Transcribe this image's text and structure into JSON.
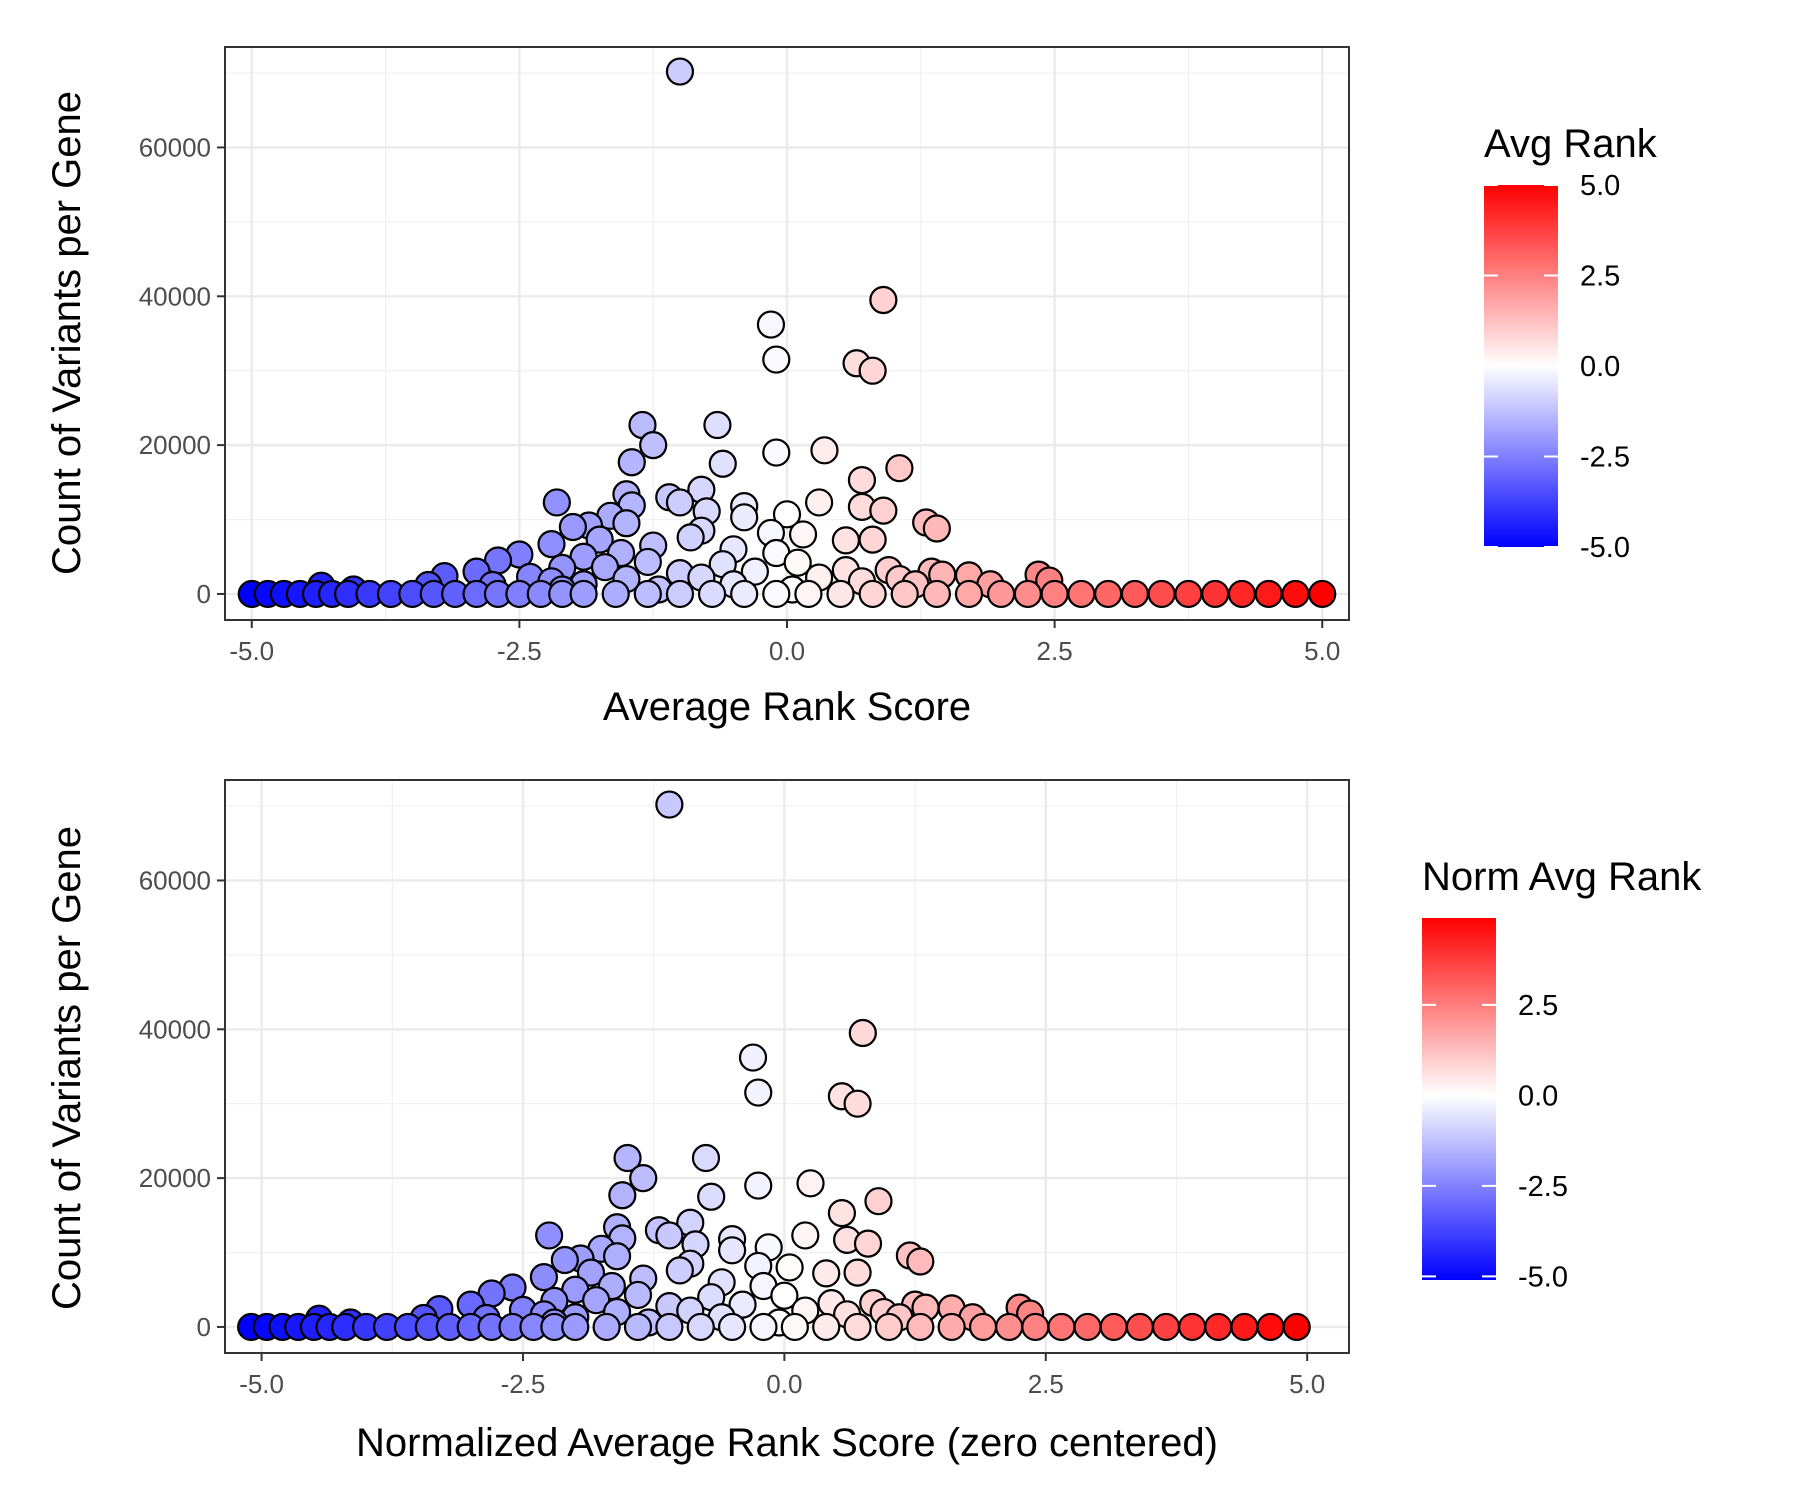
{
  "chart_data": [
    {
      "type": "scatter",
      "xlabel": "Average Rank Score",
      "ylabel": "Count of Variants per Gene",
      "xlim": [
        -5.25,
        5.25
      ],
      "ylim": [
        -3500,
        73500
      ],
      "xticks": [
        -5.0,
        -2.5,
        0.0,
        2.5,
        5.0
      ],
      "xtick_labels": [
        "-5.0",
        "-2.5",
        "0.0",
        "2.5",
        "5.0"
      ],
      "yticks": [
        0,
        20000,
        40000,
        60000
      ],
      "ytick_labels": [
        "0",
        "20000",
        "40000",
        "60000"
      ],
      "grid": true,
      "legend": {
        "title": "Avg Rank",
        "position": "right",
        "range": [
          -5.0,
          5.0
        ],
        "ticks": [
          -5.0,
          -2.5,
          0.0,
          2.5,
          5.0
        ],
        "tick_labels": [
          "-5.0",
          "-2.5",
          "0.0",
          "2.5",
          "5.0"
        ],
        "colors": {
          "low": "#0000ff",
          "mid": "#ffffff",
          "high": "#ff0000"
        }
      },
      "points": [
        {
          "x": -1.0,
          "y": 70200
        },
        {
          "x": 0.9,
          "y": 39500
        },
        {
          "x": -0.15,
          "y": 36200
        },
        {
          "x": -0.1,
          "y": 31500
        },
        {
          "x": 0.65,
          "y": 31000
        },
        {
          "x": 0.8,
          "y": 30000
        },
        {
          "x": -1.35,
          "y": 22700
        },
        {
          "x": -0.65,
          "y": 22700
        },
        {
          "x": -1.25,
          "y": 20000
        },
        {
          "x": -0.1,
          "y": 19000
        },
        {
          "x": 0.35,
          "y": 19300
        },
        {
          "x": -1.45,
          "y": 17700
        },
        {
          "x": -0.6,
          "y": 17500
        },
        {
          "x": 1.05,
          "y": 16900
        },
        {
          "x": 0.7,
          "y": 15300
        },
        {
          "x": -0.8,
          "y": 14000
        },
        {
          "x": -1.5,
          "y": 13400
        },
        {
          "x": -1.1,
          "y": 13000
        },
        {
          "x": -2.15,
          "y": 12300
        },
        {
          "x": -1.0,
          "y": 12300
        },
        {
          "x": 0.3,
          "y": 12300
        },
        {
          "x": -0.4,
          "y": 11800
        },
        {
          "x": -1.45,
          "y": 11900
        },
        {
          "x": 0.7,
          "y": 11700
        },
        {
          "x": 0.9,
          "y": 11200
        },
        {
          "x": -0.75,
          "y": 11100
        },
        {
          "x": -1.65,
          "y": 10500
        },
        {
          "x": 0.0,
          "y": 10700
        },
        {
          "x": -0.4,
          "y": 10300
        },
        {
          "x": 1.3,
          "y": 9600
        },
        {
          "x": -1.5,
          "y": 9500
        },
        {
          "x": -1.85,
          "y": 9200
        },
        {
          "x": -2.0,
          "y": 9000
        },
        {
          "x": 1.4,
          "y": 8800
        },
        {
          "x": -0.8,
          "y": 8500
        },
        {
          "x": -0.15,
          "y": 8200
        },
        {
          "x": 0.15,
          "y": 8000
        },
        {
          "x": -0.9,
          "y": 7600
        },
        {
          "x": -1.75,
          "y": 7300
        },
        {
          "x": 0.55,
          "y": 7200
        },
        {
          "x": 0.8,
          "y": 7300
        },
        {
          "x": -2.2,
          "y": 6700
        },
        {
          "x": -1.25,
          "y": 6500
        },
        {
          "x": -0.5,
          "y": 6000
        },
        {
          "x": -1.55,
          "y": 5500
        },
        {
          "x": -2.5,
          "y": 5300
        },
        {
          "x": -0.1,
          "y": 5500
        },
        {
          "x": -1.9,
          "y": 5000
        },
        {
          "x": -2.7,
          "y": 4500
        },
        {
          "x": -1.3,
          "y": 4300
        },
        {
          "x": 0.1,
          "y": 4200
        },
        {
          "x": -0.6,
          "y": 4000
        },
        {
          "x": -1.7,
          "y": 3600
        },
        {
          "x": -2.1,
          "y": 3500
        },
        {
          "x": 0.55,
          "y": 3200
        },
        {
          "x": 0.95,
          "y": 3200
        },
        {
          "x": -2.9,
          "y": 3000
        },
        {
          "x": -0.3,
          "y": 3000
        },
        {
          "x": 1.35,
          "y": 3000
        },
        {
          "x": -1.0,
          "y": 2800
        },
        {
          "x": 1.7,
          "y": 2500
        },
        {
          "x": 2.35,
          "y": 2600
        },
        {
          "x": -3.2,
          "y": 2400
        },
        {
          "x": 1.45,
          "y": 2600
        },
        {
          "x": -2.4,
          "y": 2300
        },
        {
          "x": -0.8,
          "y": 2200
        },
        {
          "x": 0.3,
          "y": 2200
        },
        {
          "x": 1.05,
          "y": 2000
        },
        {
          "x": -1.5,
          "y": 2000
        },
        {
          "x": 2.45,
          "y": 1800
        },
        {
          "x": -2.2,
          "y": 1700
        },
        {
          "x": 0.7,
          "y": 1700
        },
        {
          "x": -3.35,
          "y": 1200
        },
        {
          "x": -4.35,
          "y": 1100
        },
        {
          "x": -2.75,
          "y": 1200
        },
        {
          "x": -1.9,
          "y": 1300
        },
        {
          "x": -0.5,
          "y": 1300
        },
        {
          "x": 1.2,
          "y": 1300
        },
        {
          "x": 1.9,
          "y": 1300
        },
        {
          "x": -4.05,
          "y": 600
        },
        {
          "x": -2.1,
          "y": 600
        },
        {
          "x": -1.2,
          "y": 600
        },
        {
          "x": 0.05,
          "y": 600
        },
        {
          "x": -5.0,
          "y": 0
        },
        {
          "x": -4.85,
          "y": 0
        },
        {
          "x": -4.7,
          "y": 0
        },
        {
          "x": -4.55,
          "y": 0
        },
        {
          "x": -4.4,
          "y": 0
        },
        {
          "x": -4.25,
          "y": 0
        },
        {
          "x": -4.1,
          "y": 0
        },
        {
          "x": -3.9,
          "y": 0
        },
        {
          "x": -3.7,
          "y": 0
        },
        {
          "x": -3.5,
          "y": 0
        },
        {
          "x": -3.3,
          "y": 0
        },
        {
          "x": -3.1,
          "y": 0
        },
        {
          "x": -2.9,
          "y": 0
        },
        {
          "x": -2.7,
          "y": 0
        },
        {
          "x": -2.5,
          "y": 0
        },
        {
          "x": -2.3,
          "y": 0
        },
        {
          "x": -2.1,
          "y": 0
        },
        {
          "x": -1.9,
          "y": 0
        },
        {
          "x": -1.6,
          "y": 0
        },
        {
          "x": -1.3,
          "y": 0
        },
        {
          "x": -1.0,
          "y": 0
        },
        {
          "x": -0.7,
          "y": 0
        },
        {
          "x": -0.4,
          "y": 0
        },
        {
          "x": -0.1,
          "y": 0
        },
        {
          "x": 0.2,
          "y": 0
        },
        {
          "x": 0.5,
          "y": 0
        },
        {
          "x": 0.8,
          "y": 0
        },
        {
          "x": 1.1,
          "y": 0
        },
        {
          "x": 1.4,
          "y": 0
        },
        {
          "x": 1.7,
          "y": 0
        },
        {
          "x": 2.0,
          "y": 0
        },
        {
          "x": 2.25,
          "y": 0
        },
        {
          "x": 2.5,
          "y": 0
        },
        {
          "x": 2.75,
          "y": 0
        },
        {
          "x": 3.0,
          "y": 0
        },
        {
          "x": 3.25,
          "y": 0
        },
        {
          "x": 3.5,
          "y": 0
        },
        {
          "x": 3.75,
          "y": 0
        },
        {
          "x": 4.0,
          "y": 0
        },
        {
          "x": 4.25,
          "y": 0
        },
        {
          "x": 4.5,
          "y": 0
        },
        {
          "x": 4.75,
          "y": 0
        },
        {
          "x": 5.0,
          "y": 0
        }
      ]
    },
    {
      "type": "scatter",
      "xlabel": "Normalized Average Rank Score (zero centered)",
      "ylabel": "Count of Variants per Gene",
      "xlim": [
        -5.35,
        5.4
      ],
      "ylim": [
        -3500,
        73500
      ],
      "xticks": [
        -5.0,
        -2.5,
        0.0,
        2.5,
        5.0
      ],
      "xtick_labels": [
        "-5.0",
        "-2.5",
        "0.0",
        "2.5",
        "5.0"
      ],
      "yticks": [
        0,
        20000,
        40000,
        60000
      ],
      "ytick_labels": [
        "0",
        "20000",
        "40000",
        "60000"
      ],
      "grid": true,
      "legend": {
        "title": "Norm Avg Rank",
        "position": "right",
        "range": [
          -5.1,
          4.9
        ],
        "ticks": [
          -5.0,
          -2.5,
          0.0,
          2.5
        ],
        "tick_labels": [
          "-5.0",
          "-2.5",
          "0.0",
          "2.5"
        ],
        "colors": {
          "low": "#0000ff",
          "mid": "#ffffff",
          "high": "#ff0000"
        }
      },
      "points": [
        {
          "x": -1.1,
          "y": 70200
        },
        {
          "x": 0.75,
          "y": 39500
        },
        {
          "x": -0.3,
          "y": 36200
        },
        {
          "x": -0.25,
          "y": 31500
        },
        {
          "x": 0.55,
          "y": 31000
        },
        {
          "x": 0.7,
          "y": 30000
        },
        {
          "x": -1.5,
          "y": 22700
        },
        {
          "x": -0.75,
          "y": 22700
        },
        {
          "x": -1.35,
          "y": 20000
        },
        {
          "x": -0.25,
          "y": 19000
        },
        {
          "x": 0.25,
          "y": 19300
        },
        {
          "x": -1.55,
          "y": 17700
        },
        {
          "x": -0.7,
          "y": 17500
        },
        {
          "x": 0.9,
          "y": 16900
        },
        {
          "x": 0.55,
          "y": 15300
        },
        {
          "x": -0.9,
          "y": 14000
        },
        {
          "x": -1.6,
          "y": 13400
        },
        {
          "x": -1.2,
          "y": 13000
        },
        {
          "x": -2.25,
          "y": 12300
        },
        {
          "x": -1.1,
          "y": 12300
        },
        {
          "x": 0.2,
          "y": 12300
        },
        {
          "x": -0.5,
          "y": 11800
        },
        {
          "x": -1.55,
          "y": 11900
        },
        {
          "x": 0.6,
          "y": 11700
        },
        {
          "x": 0.8,
          "y": 11200
        },
        {
          "x": -0.85,
          "y": 11100
        },
        {
          "x": -1.75,
          "y": 10500
        },
        {
          "x": -0.15,
          "y": 10700
        },
        {
          "x": -0.5,
          "y": 10300
        },
        {
          "x": 1.2,
          "y": 9600
        },
        {
          "x": -1.6,
          "y": 9500
        },
        {
          "x": -1.95,
          "y": 9200
        },
        {
          "x": -2.1,
          "y": 9000
        },
        {
          "x": 1.3,
          "y": 8800
        },
        {
          "x": -0.9,
          "y": 8500
        },
        {
          "x": -0.25,
          "y": 8200
        },
        {
          "x": 0.05,
          "y": 8000
        },
        {
          "x": -1.0,
          "y": 7600
        },
        {
          "x": -1.85,
          "y": 7300
        },
        {
          "x": 0.4,
          "y": 7200
        },
        {
          "x": 0.7,
          "y": 7300
        },
        {
          "x": -2.3,
          "y": 6700
        },
        {
          "x": -1.35,
          "y": 6500
        },
        {
          "x": -0.6,
          "y": 6000
        },
        {
          "x": -1.65,
          "y": 5500
        },
        {
          "x": -2.6,
          "y": 5300
        },
        {
          "x": -0.2,
          "y": 5500
        },
        {
          "x": -2.0,
          "y": 5000
        },
        {
          "x": -2.8,
          "y": 4500
        },
        {
          "x": -1.4,
          "y": 4300
        },
        {
          "x": 0.0,
          "y": 4200
        },
        {
          "x": -0.7,
          "y": 4000
        },
        {
          "x": -1.8,
          "y": 3600
        },
        {
          "x": -2.2,
          "y": 3500
        },
        {
          "x": 0.45,
          "y": 3200
        },
        {
          "x": 0.85,
          "y": 3200
        },
        {
          "x": -3.0,
          "y": 3000
        },
        {
          "x": -0.4,
          "y": 3000
        },
        {
          "x": 1.25,
          "y": 3000
        },
        {
          "x": -1.1,
          "y": 2800
        },
        {
          "x": 1.6,
          "y": 2500
        },
        {
          "x": 2.25,
          "y": 2600
        },
        {
          "x": -3.3,
          "y": 2400
        },
        {
          "x": 1.35,
          "y": 2600
        },
        {
          "x": -2.5,
          "y": 2300
        },
        {
          "x": -0.9,
          "y": 2200
        },
        {
          "x": 0.2,
          "y": 2200
        },
        {
          "x": 0.95,
          "y": 2000
        },
        {
          "x": -1.6,
          "y": 2000
        },
        {
          "x": 2.35,
          "y": 1800
        },
        {
          "x": -2.3,
          "y": 1700
        },
        {
          "x": 0.6,
          "y": 1700
        },
        {
          "x": -3.45,
          "y": 1200
        },
        {
          "x": -4.45,
          "y": 1100
        },
        {
          "x": -2.85,
          "y": 1200
        },
        {
          "x": -2.0,
          "y": 1300
        },
        {
          "x": -0.6,
          "y": 1300
        },
        {
          "x": 1.1,
          "y": 1300
        },
        {
          "x": 1.8,
          "y": 1300
        },
        {
          "x": -4.15,
          "y": 600
        },
        {
          "x": -2.2,
          "y": 600
        },
        {
          "x": -1.3,
          "y": 600
        },
        {
          "x": -0.05,
          "y": 600
        },
        {
          "x": -5.1,
          "y": 0
        },
        {
          "x": -4.95,
          "y": 0
        },
        {
          "x": -4.8,
          "y": 0
        },
        {
          "x": -4.65,
          "y": 0
        },
        {
          "x": -4.5,
          "y": 0
        },
        {
          "x": -4.35,
          "y": 0
        },
        {
          "x": -4.2,
          "y": 0
        },
        {
          "x": -4.0,
          "y": 0
        },
        {
          "x": -3.8,
          "y": 0
        },
        {
          "x": -3.6,
          "y": 0
        },
        {
          "x": -3.4,
          "y": 0
        },
        {
          "x": -3.2,
          "y": 0
        },
        {
          "x": -3.0,
          "y": 0
        },
        {
          "x": -2.8,
          "y": 0
        },
        {
          "x": -2.6,
          "y": 0
        },
        {
          "x": -2.4,
          "y": 0
        },
        {
          "x": -2.2,
          "y": 0
        },
        {
          "x": -2.0,
          "y": 0
        },
        {
          "x": -1.7,
          "y": 0
        },
        {
          "x": -1.4,
          "y": 0
        },
        {
          "x": -1.1,
          "y": 0
        },
        {
          "x": -0.8,
          "y": 0
        },
        {
          "x": -0.5,
          "y": 0
        },
        {
          "x": -0.2,
          "y": 0
        },
        {
          "x": 0.1,
          "y": 0
        },
        {
          "x": 0.4,
          "y": 0
        },
        {
          "x": 0.7,
          "y": 0
        },
        {
          "x": 1.0,
          "y": 0
        },
        {
          "x": 1.3,
          "y": 0
        },
        {
          "x": 1.6,
          "y": 0
        },
        {
          "x": 1.9,
          "y": 0
        },
        {
          "x": 2.15,
          "y": 0
        },
        {
          "x": 2.4,
          "y": 0
        },
        {
          "x": 2.65,
          "y": 0
        },
        {
          "x": 2.9,
          "y": 0
        },
        {
          "x": 3.15,
          "y": 0
        },
        {
          "x": 3.4,
          "y": 0
        },
        {
          "x": 3.65,
          "y": 0
        },
        {
          "x": 3.9,
          "y": 0
        },
        {
          "x": 4.15,
          "y": 0
        },
        {
          "x": 4.4,
          "y": 0
        },
        {
          "x": 4.65,
          "y": 0
        },
        {
          "x": 4.9,
          "y": 0
        }
      ]
    }
  ]
}
